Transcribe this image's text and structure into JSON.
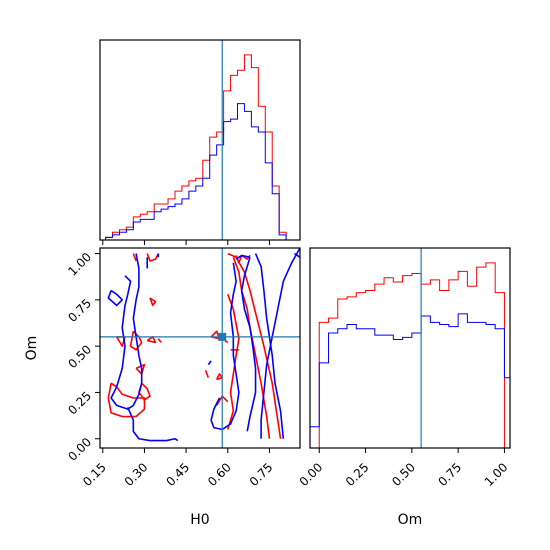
{
  "colors": {
    "series_a": "#ff0000",
    "series_b": "#0000ff",
    "truth": "#1f77b4",
    "frame": "#000000"
  },
  "chart_data": [
    {
      "type": "histogram",
      "panel": "marginal-H0",
      "x_range": [
        0.14,
        0.86
      ],
      "y_ticks_shown": false,
      "bin_edges": [
        0.16,
        0.185,
        0.21,
        0.235,
        0.26,
        0.285,
        0.31,
        0.335,
        0.36,
        0.385,
        0.41,
        0.435,
        0.46,
        0.485,
        0.51,
        0.535,
        0.56,
        0.585,
        0.61,
        0.635,
        0.66,
        0.685,
        0.71,
        0.735,
        0.76,
        0.785,
        0.81,
        0.835
      ],
      "series": [
        {
          "color": "#ff0000",
          "counts": [
            1,
            3,
            4,
            5,
            9,
            10,
            11,
            14,
            14,
            16,
            19,
            21,
            23,
            24,
            31,
            40,
            42,
            58,
            64,
            66,
            72,
            67,
            52,
            42,
            21,
            3,
            0
          ]
        },
        {
          "color": "#0000ff",
          "counts": [
            1,
            2,
            3,
            4,
            7,
            8,
            8,
            11,
            12,
            13,
            14,
            16,
            19,
            21,
            24,
            33,
            37,
            46,
            47,
            53,
            50,
            44,
            42,
            30,
            18,
            2,
            0
          ]
        }
      ],
      "truth_line": {
        "x": 0.58
      }
    },
    {
      "type": "contour",
      "panel": "joint-H0-Om",
      "xlabel": "H0",
      "ylabel": "Om",
      "x_range": [
        0.14,
        0.86
      ],
      "y_range": [
        -0.05,
        1.03
      ],
      "x_ticks": [
        "0.15",
        "0.30",
        "0.45",
        "0.60",
        "0.75"
      ],
      "y_ticks": [
        "0.00",
        "0.25",
        "0.50",
        "0.75",
        "1.00"
      ],
      "series": [
        {
          "color": "#ff0000",
          "contours": [
            [
              [
                0.6,
                1.0
              ],
              [
                0.63,
                0.98
              ],
              [
                0.66,
                0.9
              ],
              [
                0.68,
                0.8
              ],
              [
                0.7,
                0.68
              ],
              [
                0.73,
                0.5
              ],
              [
                0.76,
                0.3
              ],
              [
                0.78,
                0.1
              ],
              [
                0.79,
                0.0
              ]
            ],
            [
              [
                0.62,
                0.98
              ],
              [
                0.64,
                0.9
              ],
              [
                0.65,
                0.8
              ],
              [
                0.67,
                0.7
              ],
              [
                0.68,
                0.6
              ],
              [
                0.7,
                0.45
              ],
              [
                0.72,
                0.3
              ],
              [
                0.74,
                0.12
              ],
              [
                0.75,
                0.0
              ]
            ],
            [
              [
                0.6,
                0.78
              ],
              [
                0.62,
                0.7
              ],
              [
                0.63,
                0.62
              ],
              [
                0.64,
                0.54
              ],
              [
                0.63,
                0.45
              ],
              [
                0.62,
                0.35
              ],
              [
                0.61,
                0.25
              ],
              [
                0.62,
                0.15
              ],
              [
                0.6,
                0.05
              ]
            ],
            [
              [
                0.63,
                0.99
              ],
              [
                0.64,
                0.95
              ],
              [
                0.65,
                0.99
              ]
            ],
            [
              [
                0.65,
                0.99
              ],
              [
                0.67,
                0.97
              ],
              [
                0.68,
                0.99
              ]
            ],
            [
              [
                0.2,
                0.55
              ],
              [
                0.23,
                0.55
              ],
              [
                0.22,
                0.5
              ],
              [
                0.2,
                0.55
              ]
            ],
            [
              [
                0.26,
                0.58
              ],
              [
                0.28,
                0.55
              ],
              [
                0.29,
                0.52
              ],
              [
                0.27,
                0.48
              ],
              [
                0.25,
                0.5
              ],
              [
                0.26,
                0.58
              ]
            ],
            [
              [
                0.31,
                0.53
              ],
              [
                0.33,
                0.55
              ],
              [
                0.34,
                0.52
              ],
              [
                0.31,
                0.53
              ]
            ],
            [
              [
                0.27,
                0.38
              ],
              [
                0.3,
                0.4
              ],
              [
                0.29,
                0.35
              ],
              [
                0.27,
                0.38
              ]
            ],
            [
              [
                0.18,
                0.3
              ],
              [
                0.17,
                0.22
              ],
              [
                0.18,
                0.14
              ],
              [
                0.22,
                0.12
              ],
              [
                0.27,
                0.12
              ],
              [
                0.3,
                0.16
              ],
              [
                0.3,
                0.22
              ],
              [
                0.26,
                0.22
              ],
              [
                0.22,
                0.24
              ],
              [
                0.2,
                0.28
              ],
              [
                0.18,
                0.3
              ]
            ],
            [
              [
                0.29,
                0.3
              ],
              [
                0.31,
                0.27
              ],
              [
                0.32,
                0.23
              ],
              [
                0.3,
                0.21
              ],
              [
                0.28,
                0.25
              ],
              [
                0.29,
                0.3
              ]
            ],
            [
              [
                0.32,
                0.76
              ],
              [
                0.34,
                0.74
              ],
              [
                0.33,
                0.72
              ],
              [
                0.32,
                0.76
              ]
            ],
            [
              [
                0.36,
                0.52
              ],
              [
                0.35,
                0.54
              ]
            ],
            [
              [
                0.26,
                1.0
              ],
              [
                0.27,
                0.96
              ]
            ],
            [
              [
                0.31,
                1.0
              ],
              [
                0.32,
                0.96
              ],
              [
                0.34,
                0.97
              ],
              [
                0.35,
                1.0
              ]
            ],
            [
              [
                0.54,
                0.55
              ],
              [
                0.56,
                0.58
              ],
              [
                0.57,
                0.54
              ],
              [
                0.54,
                0.55
              ]
            ],
            [
              [
                0.59,
                0.53
              ],
              [
                0.6,
                0.52
              ]
            ],
            [
              [
                0.52,
                0.37
              ],
              [
                0.53,
                0.33
              ]
            ],
            [
              [
                0.56,
                0.32
              ],
              [
                0.57,
                0.35
              ],
              [
                0.58,
                0.33
              ],
              [
                0.56,
                0.32
              ]
            ],
            [
              [
                0.56,
                0.18
              ],
              [
                0.58,
                0.23
              ],
              [
                0.6,
                0.2
              ]
            ],
            [
              [
                0.61,
                0.48
              ],
              [
                0.64,
                0.48
              ]
            ]
          ]
        },
        {
          "color": "#0000ff",
          "contours": [
            [
              [
                0.7,
                1.0
              ],
              [
                0.72,
                0.93
              ],
              [
                0.73,
                0.8
              ],
              [
                0.74,
                0.65
              ],
              [
                0.76,
                0.45
              ],
              [
                0.77,
                0.3
              ],
              [
                0.79,
                0.15
              ],
              [
                0.8,
                0.0
              ]
            ],
            [
              [
                0.84,
                1.0
              ],
              [
                0.86,
                0.98
              ]
            ],
            [
              [
                0.86,
                1.03
              ],
              [
                0.83,
                0.95
              ],
              [
                0.8,
                0.85
              ],
              [
                0.78,
                0.7
              ],
              [
                0.76,
                0.55
              ],
              [
                0.74,
                0.4
              ],
              [
                0.73,
                0.25
              ],
              [
                0.72,
                0.1
              ],
              [
                0.72,
                0.0
              ]
            ],
            [
              [
                0.62,
                0.95
              ],
              [
                0.63,
                0.85
              ],
              [
                0.62,
                0.78
              ],
              [
                0.61,
                0.68
              ],
              [
                0.62,
                0.55
              ],
              [
                0.62,
                0.45
              ],
              [
                0.63,
                0.35
              ],
              [
                0.64,
                0.25
              ],
              [
                0.63,
                0.15
              ],
              [
                0.61,
                0.08
              ],
              [
                0.58,
                0.05
              ],
              [
                0.55,
                0.06
              ],
              [
                0.54,
                0.1
              ],
              [
                0.55,
                0.16
              ],
              [
                0.57,
                0.22
              ]
            ],
            [
              [
                0.68,
                0.98
              ],
              [
                0.66,
                0.88
              ],
              [
                0.65,
                0.8
              ],
              [
                0.66,
                0.7
              ],
              [
                0.68,
                0.6
              ],
              [
                0.69,
                0.5
              ],
              [
                0.7,
                0.38
              ],
              [
                0.7,
                0.25
              ],
              [
                0.68,
                0.12
              ],
              [
                0.67,
                0.04
              ]
            ],
            [
              [
                0.63,
                0.97
              ],
              [
                0.65,
                0.99
              ],
              [
                0.68,
                0.98
              ]
            ],
            [
              [
                0.18,
                0.8
              ],
              [
                0.2,
                0.78
              ],
              [
                0.22,
                0.75
              ],
              [
                0.2,
                0.72
              ],
              [
                0.17,
                0.76
              ],
              [
                0.18,
                0.8
              ]
            ],
            [
              [
                0.23,
                0.88
              ],
              [
                0.25,
                0.85
              ],
              [
                0.24,
                0.78
              ],
              [
                0.23,
                0.72
              ],
              [
                0.22,
                0.6
              ],
              [
                0.23,
                0.5
              ],
              [
                0.22,
                0.38
              ],
              [
                0.2,
                0.28
              ],
              [
                0.18,
                0.22
              ],
              [
                0.2,
                0.18
              ],
              [
                0.24,
                0.16
              ],
              [
                0.26,
                0.18
              ],
              [
                0.28,
                0.24
              ],
              [
                0.29,
                0.3
              ],
              [
                0.29,
                0.38
              ],
              [
                0.28,
                0.45
              ],
              [
                0.27,
                0.55
              ],
              [
                0.26,
                0.65
              ],
              [
                0.27,
                0.75
              ],
              [
                0.28,
                0.82
              ],
              [
                0.28,
                0.92
              ],
              [
                0.27,
                1.0
              ]
            ],
            [
              [
                0.24,
                0.17
              ],
              [
                0.26,
                0.1
              ],
              [
                0.26,
                0.04
              ],
              [
                0.28,
                0.0
              ],
              [
                0.32,
                -0.01
              ],
              [
                0.38,
                -0.01
              ],
              [
                0.41,
                0.0
              ],
              [
                0.42,
                -0.01
              ]
            ],
            [
              [
                0.31,
                0.92
              ],
              [
                0.31,
                0.98
              ]
            ],
            [
              [
                0.35,
                0.98
              ],
              [
                0.35,
                1.0
              ]
            ],
            [
              [
                0.53,
                0.4
              ],
              [
                0.54,
                0.42
              ]
            ]
          ]
        }
      ],
      "truth_point": {
        "x": 0.58,
        "y": 0.55
      }
    },
    {
      "type": "histogram",
      "panel": "marginal-Om",
      "xlabel": "Om",
      "x_range": [
        -0.05,
        1.03
      ],
      "x_ticks": [
        "0.00",
        "0.25",
        "0.50",
        "0.75",
        "1.00"
      ],
      "y_ticks_shown": false,
      "bin_edges": [
        -0.05,
        0.0,
        0.05,
        0.1,
        0.15,
        0.2,
        0.25,
        0.3,
        0.35,
        0.4,
        0.45,
        0.5,
        0.55,
        0.6,
        0.65,
        0.7,
        0.75,
        0.8,
        0.85,
        0.9,
        0.95,
        1.0,
        1.03
      ],
      "series": [
        {
          "color": "#ff0000",
          "counts": [
            0,
            59,
            61,
            70,
            71,
            73,
            74,
            77,
            80,
            78,
            81,
            82,
            77,
            79,
            74,
            79,
            83,
            76,
            85,
            87,
            73,
            0
          ]
        },
        {
          "color": "#0000ff",
          "counts": [
            10,
            40,
            54,
            56,
            58,
            56,
            56,
            53,
            53,
            51,
            52,
            54,
            62,
            59,
            58,
            57,
            63,
            59,
            59,
            58,
            56,
            33
          ]
        }
      ],
      "truth_line": {
        "x": 0.55
      }
    }
  ]
}
